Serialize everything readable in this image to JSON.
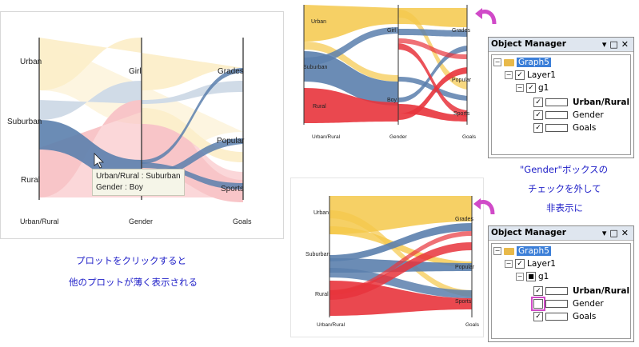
{
  "left_plot": {
    "y_labels": [
      "Urban",
      "Suburban",
      "Rural"
    ],
    "axis_titles": [
      "Urban/Rural",
      "Gender",
      "Goals"
    ],
    "gender_labels": [
      "Girl"
    ],
    "goal_labels": [
      "Grades",
      "Popular",
      "Sports"
    ],
    "tooltip_line1": "Urban/Rural : Suburban",
    "tooltip_line2": "Gender : Boy"
  },
  "top_plot": {
    "y_labels": [
      "Urban",
      "Suburban",
      "Rural"
    ],
    "axis_titles": [
      "Urban/Rural",
      "Gender",
      "Goals"
    ],
    "gender_labels": [
      "Girl",
      "Boy"
    ],
    "goal_labels": [
      "Grades",
      "Popular",
      "Sports"
    ]
  },
  "bottom_plot": {
    "y_labels": [
      "Urban",
      "Suburban",
      "Rural"
    ],
    "axis_titles": [
      "Urban/Rural",
      "Goals"
    ],
    "goal_labels": [
      "Grades",
      "Popular",
      "Sports"
    ]
  },
  "caption_left": {
    "line1": "プロットをクリックすると",
    "line2": "他のプロットが薄く表示される"
  },
  "caption_right": {
    "line1": "\"Gender\"ボックスの",
    "line2": "チェックを外して",
    "line3": "非表示に"
  },
  "object_manager_top": {
    "title": "Object Manager",
    "graph": "Graph5",
    "layer": "Layer1",
    "group": "g1",
    "items": [
      "Urban/Rural",
      "Gender",
      "Goals"
    ]
  },
  "object_manager_bottom": {
    "title": "Object Manager",
    "graph": "Graph5",
    "layer": "Layer1",
    "group": "g1",
    "items": [
      "Urban/Rural",
      "Gender",
      "Goals"
    ]
  },
  "colors": {
    "urban": "#f5c84a",
    "suburban": "#5b7fad",
    "rural": "#e8343c",
    "arrow": "#d04ac8",
    "caption": "#2020c8"
  }
}
